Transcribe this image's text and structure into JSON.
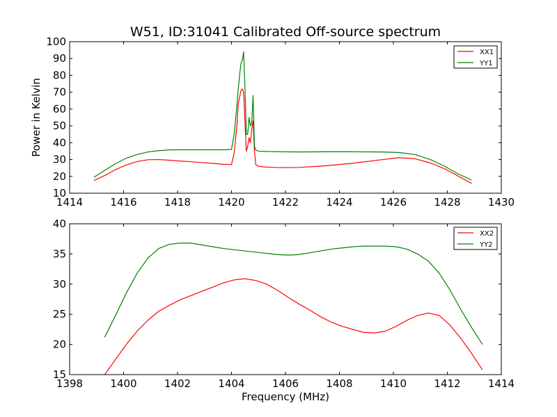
{
  "chart_data": [
    {
      "type": "line",
      "title": "W51, ID:31041 Calibrated Off-source spectrum",
      "xlabel": "",
      "ylabel": "Power in Kelvin",
      "xlim": [
        1414,
        1430
      ],
      "ylim": [
        10,
        100
      ],
      "xticks": [
        1414,
        1416,
        1418,
        1420,
        1422,
        1424,
        1426,
        1428,
        1430
      ],
      "yticks": [
        10,
        20,
        30,
        40,
        50,
        60,
        70,
        80,
        90,
        100
      ],
      "legend_position": "top-right",
      "grid": false,
      "series": [
        {
          "name": "XX1",
          "color": "#ff0000",
          "x": [
            1414.9,
            1415.3,
            1415.7,
            1416.1,
            1416.5,
            1416.9,
            1417.3,
            1417.7,
            1418.1,
            1418.5,
            1418.9,
            1419.3,
            1419.7,
            1420.0,
            1420.1,
            1420.2,
            1420.25,
            1420.3,
            1420.35,
            1420.4,
            1420.45,
            1420.5,
            1420.55,
            1420.6,
            1420.65,
            1420.7,
            1420.75,
            1420.8,
            1420.85,
            1420.9,
            1421.0,
            1421.3,
            1421.8,
            1422.5,
            1423.5,
            1424.5,
            1425.5,
            1426.2,
            1426.8,
            1427.4,
            1427.9,
            1428.4,
            1428.9
          ],
          "y": [
            17.5,
            20.5,
            24,
            26.8,
            28.8,
            29.9,
            30.0,
            29.6,
            29.1,
            28.7,
            28.2,
            27.7,
            27.2,
            27.0,
            34,
            50,
            63,
            67,
            71,
            72,
            70,
            52,
            35,
            38,
            43,
            40,
            48,
            53,
            35,
            27,
            26,
            25.5,
            25.2,
            25.3,
            26.3,
            27.8,
            29.8,
            31.1,
            30.5,
            27.8,
            24.5,
            20.2,
            15.8
          ]
        },
        {
          "name": "YY1",
          "color": "#008000",
          "x": [
            1414.9,
            1415.3,
            1415.7,
            1416.1,
            1416.5,
            1416.9,
            1417.3,
            1417.7,
            1418.1,
            1418.5,
            1418.9,
            1419.3,
            1419.7,
            1420.0,
            1420.1,
            1420.2,
            1420.25,
            1420.3,
            1420.35,
            1420.4,
            1420.45,
            1420.5,
            1420.55,
            1420.6,
            1420.65,
            1420.7,
            1420.75,
            1420.8,
            1420.85,
            1420.9,
            1421.0,
            1421.3,
            1421.8,
            1422.5,
            1423.5,
            1424.5,
            1425.5,
            1426.2,
            1426.8,
            1427.4,
            1427.9,
            1428.4,
            1428.9
          ],
          "y": [
            19.5,
            23.5,
            27.5,
            30.8,
            33.0,
            34.5,
            35.3,
            35.7,
            35.8,
            35.8,
            35.8,
            35.8,
            35.8,
            36.0,
            45,
            62,
            72,
            80,
            87,
            89,
            94,
            72,
            45,
            45,
            55,
            50,
            52,
            68,
            38,
            35.5,
            35,
            34.8,
            34.6,
            34.5,
            34.6,
            34.6,
            34.5,
            34.2,
            33.0,
            29.8,
            26.0,
            21.5,
            17.8
          ]
        }
      ]
    },
    {
      "type": "line",
      "title": "",
      "xlabel": "Frequency (MHz)",
      "ylabel": "",
      "xlim": [
        1398,
        1414
      ],
      "ylim": [
        15,
        40
      ],
      "xticks": [
        1398,
        1400,
        1402,
        1404,
        1406,
        1408,
        1410,
        1412,
        1414
      ],
      "yticks": [
        15,
        20,
        25,
        30,
        35,
        40
      ],
      "legend_position": "top-right",
      "grid": false,
      "series": [
        {
          "name": "XX2",
          "color": "#ff0000",
          "x": [
            1399.3,
            1399.7,
            1400.1,
            1400.5,
            1400.9,
            1401.3,
            1401.7,
            1402.1,
            1402.5,
            1402.9,
            1403.3,
            1403.7,
            1404.1,
            1404.5,
            1404.9,
            1405.3,
            1405.7,
            1406.1,
            1406.5,
            1406.9,
            1407.3,
            1407.7,
            1408.1,
            1408.5,
            1408.9,
            1409.3,
            1409.7,
            1410.1,
            1410.5,
            1410.9,
            1411.3,
            1411.7,
            1412.1,
            1412.5,
            1412.9,
            1413.3
          ],
          "y": [
            15.0,
            17.5,
            20.0,
            22.2,
            24.0,
            25.5,
            26.5,
            27.4,
            28.1,
            28.8,
            29.5,
            30.2,
            30.7,
            30.9,
            30.6,
            30.0,
            29.0,
            27.8,
            26.7,
            25.7,
            24.6,
            23.7,
            23.0,
            22.5,
            22.0,
            21.9,
            22.2,
            23.0,
            24.0,
            24.8,
            25.2,
            24.8,
            23.2,
            21.0,
            18.5,
            15.8
          ]
        },
        {
          "name": "YY2",
          "color": "#008000",
          "x": [
            1399.3,
            1399.7,
            1400.1,
            1400.5,
            1400.9,
            1401.3,
            1401.7,
            1402.1,
            1402.5,
            1402.9,
            1403.3,
            1403.7,
            1404.1,
            1404.5,
            1404.9,
            1405.3,
            1405.7,
            1406.1,
            1406.5,
            1406.9,
            1407.3,
            1407.7,
            1408.1,
            1408.5,
            1408.9,
            1409.3,
            1409.7,
            1410.1,
            1410.5,
            1410.9,
            1411.3,
            1411.7,
            1412.1,
            1412.5,
            1412.9,
            1413.3
          ],
          "y": [
            21.2,
            24.8,
            28.5,
            31.8,
            34.3,
            35.9,
            36.6,
            36.8,
            36.8,
            36.5,
            36.2,
            35.9,
            35.7,
            35.5,
            35.3,
            35.1,
            34.9,
            34.8,
            34.9,
            35.2,
            35.5,
            35.8,
            36.0,
            36.2,
            36.3,
            36.3,
            36.3,
            36.2,
            35.8,
            35.0,
            33.8,
            31.8,
            29.0,
            25.8,
            22.8,
            20.0
          ]
        }
      ]
    }
  ]
}
